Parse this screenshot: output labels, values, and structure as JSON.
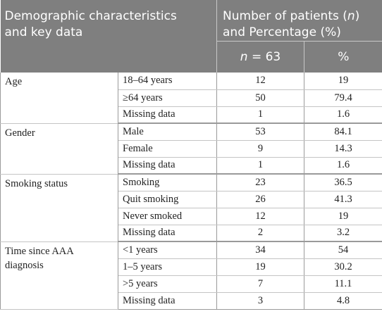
{
  "header": {
    "demographic_line1": "Demographic characteristics",
    "demographic_line2": "and key data",
    "number_line1_pre": "Number of patients (",
    "number_line1_n": "n",
    "number_line1_post": ")",
    "number_line2": "and Percentage (%)",
    "n_label": "n",
    "n_value": " = 63",
    "pct_label": "%"
  },
  "groups": [
    {
      "category": "Age",
      "rows": [
        {
          "label": "18–64 years",
          "n": "12",
          "pct": "19"
        },
        {
          "label": "≥64 years",
          "n": "50",
          "pct": "79.4"
        },
        {
          "label": "Missing data",
          "n": "1",
          "pct": "1.6"
        }
      ]
    },
    {
      "category": "Gender",
      "rows": [
        {
          "label": "Male",
          "n": "53",
          "pct": "84.1"
        },
        {
          "label": "Female",
          "n": "9",
          "pct": "14.3"
        },
        {
          "label": "Missing data",
          "n": "1",
          "pct": "1.6"
        }
      ]
    },
    {
      "category": "Smoking status",
      "rows": [
        {
          "label": "Smoking",
          "n": "23",
          "pct": "36.5"
        },
        {
          "label": "Quit smoking",
          "n": "26",
          "pct": "41.3"
        },
        {
          "label": "Never smoked",
          "n": "12",
          "pct": "19"
        },
        {
          "label": "Missing data",
          "n": "2",
          "pct": "3.2"
        }
      ]
    },
    {
      "category": "Time since AAA diagnosis",
      "rows": [
        {
          "label": "<1 years",
          "n": "34",
          "pct": "54"
        },
        {
          "label": "1–5 years",
          "n": "19",
          "pct": "30.2"
        },
        {
          "label": ">5 years",
          "n": "7",
          "pct": "11.1"
        },
        {
          "label": "Missing data",
          "n": "3",
          "pct": "4.8"
        }
      ]
    }
  ]
}
